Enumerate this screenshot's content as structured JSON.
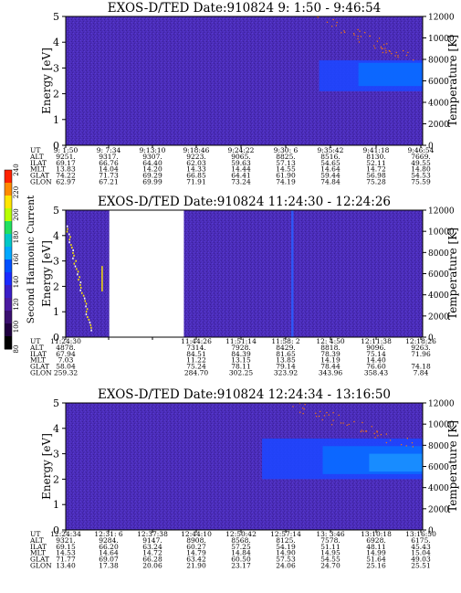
{
  "figure": {
    "colorbar": {
      "label": "Second Harmonic Current",
      "ticks": [
        "240",
        "220",
        "200",
        "180",
        "160",
        "140",
        "120",
        "100",
        "80"
      ],
      "colors": [
        "#ff2200",
        "#ff8a00",
        "#ffe600",
        "#b8ff00",
        "#22e060",
        "#00c8c8",
        "#00a8ff",
        "#0050ff",
        "#1a2aff",
        "#3a1ec8",
        "#4a1aa0",
        "#3a1070",
        "#200040",
        "#000000"
      ]
    },
    "background_color": "#4b2db8",
    "gap_color": "#ffffff"
  },
  "chart_data": [
    {
      "type": "heatmap",
      "title": "EXOS-D/TED   Date:910824   9: 1:50 - 9:46:54",
      "xlabel": "",
      "ylabel": "Energy [eV]",
      "y2label": "Temperature [K]",
      "ylim": [
        0,
        5
      ],
      "y_ticks": [
        "0",
        "1",
        "2",
        "3",
        "4",
        "5"
      ],
      "y2lim": [
        0,
        12000
      ],
      "y2_ticks": [
        "0",
        "2000",
        "4000",
        "6000",
        "8000",
        "10000",
        "12000"
      ],
      "gaps": [],
      "features": [
        {
          "kind": "band",
          "t0": 0.71,
          "t1": 1.0,
          "e0": 2.1,
          "e1": 3.3,
          "color": "#1e46ff"
        },
        {
          "kind": "band",
          "t0": 0.82,
          "t1": 1.0,
          "e0": 2.3,
          "e1": 3.2,
          "color": "#0a6cff"
        },
        {
          "kind": "dots",
          "t0": 0.7,
          "t1": 0.98,
          "e0": 3.3,
          "e1": 5.0,
          "color": "#ff7a00"
        }
      ],
      "ephemeris": {
        "labels": [
          "UT",
          "ALT",
          "ILAT",
          "MLT",
          "GLAT",
          "GLON"
        ],
        "columns": [
          [
            "9: 1:50",
            "9251.",
            "69.17",
            "13.83",
            "74.22",
            "62.97"
          ],
          [
            "9: 7:34",
            "9317.",
            "66.76",
            "14.04",
            "71.73",
            "67.21"
          ],
          [
            "9:13:10",
            "9307.",
            "64.40",
            "14.20",
            "69.29",
            "69.99"
          ],
          [
            "9:18:46",
            "9223.",
            "62.03",
            "14.33",
            "66.85",
            "71.91"
          ],
          [
            "9:24:22",
            "9065.",
            "59.63",
            "14.44",
            "64.41",
            "73.24"
          ],
          [
            "9:30: 6",
            "8825.",
            "57.13",
            "14.55",
            "61.90",
            "74.19"
          ],
          [
            "9:35:42",
            "8516.",
            "54.65",
            "14.64",
            "59.44",
            "74.84"
          ],
          [
            "9:41:18",
            "8130.",
            "52.11",
            "14.72",
            "56.98",
            "75.28"
          ],
          [
            "9:46:54",
            "7669.",
            "49.55",
            "14.80",
            "54.53",
            "75.59"
          ]
        ]
      }
    },
    {
      "type": "heatmap",
      "title": "EXOS-D/TED   Date:910824   11:24:30 - 12:24:26",
      "xlabel": "",
      "ylabel": "Energy [eV]",
      "y2label": "Temperature [K]",
      "ylim": [
        0,
        5
      ],
      "y_ticks": [
        "0",
        "1",
        "2",
        "3",
        "4",
        "5"
      ],
      "y2lim": [
        0,
        12000
      ],
      "y2_ticks": [
        "0",
        "2000",
        "4000",
        "6000",
        "8000",
        "10000",
        "12000"
      ],
      "gaps": [
        {
          "t0": 0.122,
          "t1": 0.331
        }
      ],
      "features": [
        {
          "kind": "streak",
          "t0": 0.0,
          "t1": 0.07,
          "e0": 0.3,
          "e1": 4.4,
          "color": "#ffe800"
        },
        {
          "kind": "line",
          "t0": 0.632,
          "t1": 0.638,
          "e0": 0.0,
          "e1": 5.0,
          "color": "#2a5cff"
        },
        {
          "kind": "line",
          "t0": 0.1,
          "t1": 0.104,
          "e0": 1.8,
          "e1": 2.8,
          "color": "#ffe800"
        }
      ],
      "ephemeris": {
        "labels": [
          "UT",
          "ALT",
          "ILAT",
          "MLT",
          "GLAT",
          "GLON"
        ],
        "columns": [
          [
            "11:24:30",
            "4878.",
            "67.94",
            "7.03",
            "58.04",
            "259.32"
          ],
          [
            "",
            "",
            "",
            "",
            "",
            ""
          ],
          [
            "",
            "",
            "",
            "",
            "",
            ""
          ],
          [
            "11:44:26",
            "7314.",
            "84.51",
            "11.22",
            "75.24",
            "284.70"
          ],
          [
            "11:51:14",
            "7928.",
            "84.39",
            "13.15",
            "78.11",
            "302.25"
          ],
          [
            "11:58: 2",
            "8429.",
            "81.65",
            "13.85",
            "79.14",
            "323.92"
          ],
          [
            "12: 4:50",
            "8818.",
            "78.39",
            "14.19",
            "78.44",
            "343.96"
          ],
          [
            "12:11:38",
            "9096.",
            "75.14",
            "14.40",
            "76.60",
            "358.43"
          ],
          [
            "12:18:26",
            "9263.",
            "71.96",
            "",
            "74.18",
            "7.84"
          ]
        ]
      }
    },
    {
      "type": "heatmap",
      "title": "EXOS-D/TED   Date:910824   12:24:34 - 13:16:50",
      "xlabel": "",
      "ylabel": "Energy [eV]",
      "y2label": "Temperature [K]",
      "ylim": [
        0,
        5
      ],
      "y_ticks": [
        "0",
        "1",
        "2",
        "3",
        "4",
        "5"
      ],
      "y2lim": [
        0,
        12000
      ],
      "y2_ticks": [
        "0",
        "2000",
        "4000",
        "6000",
        "8000",
        "10000",
        "12000"
      ],
      "gaps": [],
      "features": [
        {
          "kind": "band",
          "t0": 0.55,
          "t1": 1.0,
          "e0": 2.0,
          "e1": 3.6,
          "color": "#1e46ff"
        },
        {
          "kind": "band",
          "t0": 0.72,
          "t1": 1.0,
          "e0": 2.2,
          "e1": 3.3,
          "color": "#0a6cff"
        },
        {
          "kind": "band",
          "t0": 0.85,
          "t1": 1.0,
          "e0": 2.3,
          "e1": 3.0,
          "color": "#1a90ff"
        },
        {
          "kind": "dots",
          "t0": 0.62,
          "t1": 0.98,
          "e0": 3.3,
          "e1": 5.0,
          "color": "#ff7a00"
        }
      ],
      "ephemeris": {
        "labels": [
          "UT",
          "ALT",
          "ILAT",
          "MLT",
          "GLAT",
          "GLON"
        ],
        "columns": [
          [
            "12:24:34",
            "9321.",
            "69.15",
            "14.53",
            "71.77",
            "13.40"
          ],
          [
            "12:31: 6",
            "9284.",
            "66.20",
            "14.64",
            "69.07",
            "17.38"
          ],
          [
            "12:37:38",
            "9147.",
            "63.24",
            "14.72",
            "66.28",
            "20.06"
          ],
          [
            "12:44:10",
            "8908.",
            "60.27",
            "14.79",
            "63.42",
            "21.90"
          ],
          [
            "12:50:42",
            "8568.",
            "57.25",
            "14.84",
            "60.50",
            "23.17"
          ],
          [
            "12:57:14",
            "8125.",
            "54.19",
            "14.90",
            "57.53",
            "24.06"
          ],
          [
            "13: 3:46",
            "7578.",
            "51.11",
            "14.95",
            "54.55",
            "24.70"
          ],
          [
            "13:10:18",
            "6928.",
            "48.11",
            "14.99",
            "51.64",
            "25.16"
          ],
          [
            "13:16:50",
            "6175.",
            "45.43",
            "15.04",
            "49.03",
            "25.51"
          ]
        ]
      }
    }
  ]
}
